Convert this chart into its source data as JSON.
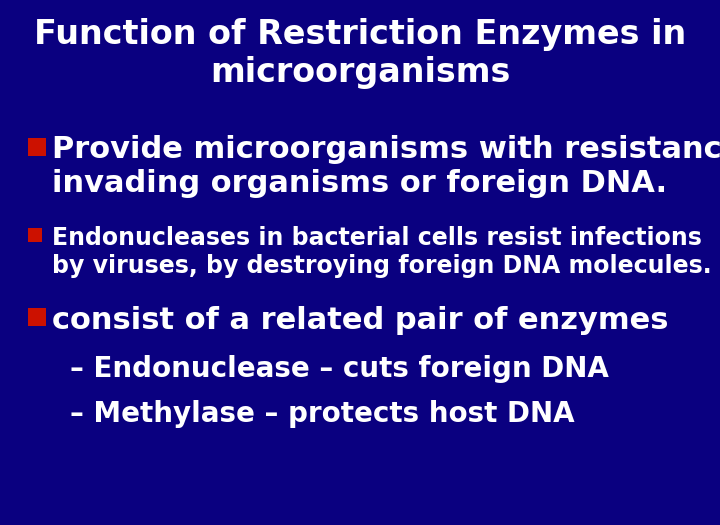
{
  "title_line1": "Function of Restriction Enzymes in",
  "title_line2": "microorganisms",
  "background_color": "#0a0080",
  "title_color": "#FFFFFF",
  "bullet_color": "#CC1100",
  "text_color": "#FFFFFF",
  "title_fontsize": 24,
  "bullet1_fontsize": 22,
  "bullet2_fontsize": 17,
  "bullet3_fontsize": 22,
  "sub_fontsize": 20,
  "bullet1_line1": "Provide microorganisms with resistance to",
  "bullet1_line2": "invading organisms or foreign DNA.",
  "bullet2_line1": "Endonucleases in bacterial cells resist infections",
  "bullet2_line2": "by viruses, by destroying foreign DNA molecules.",
  "bullet3_line1": "consist of a related pair of enzymes",
  "sub1": "– Endonuclease – cuts foreign DNA",
  "sub2": "– Methylase – protects host DNA"
}
